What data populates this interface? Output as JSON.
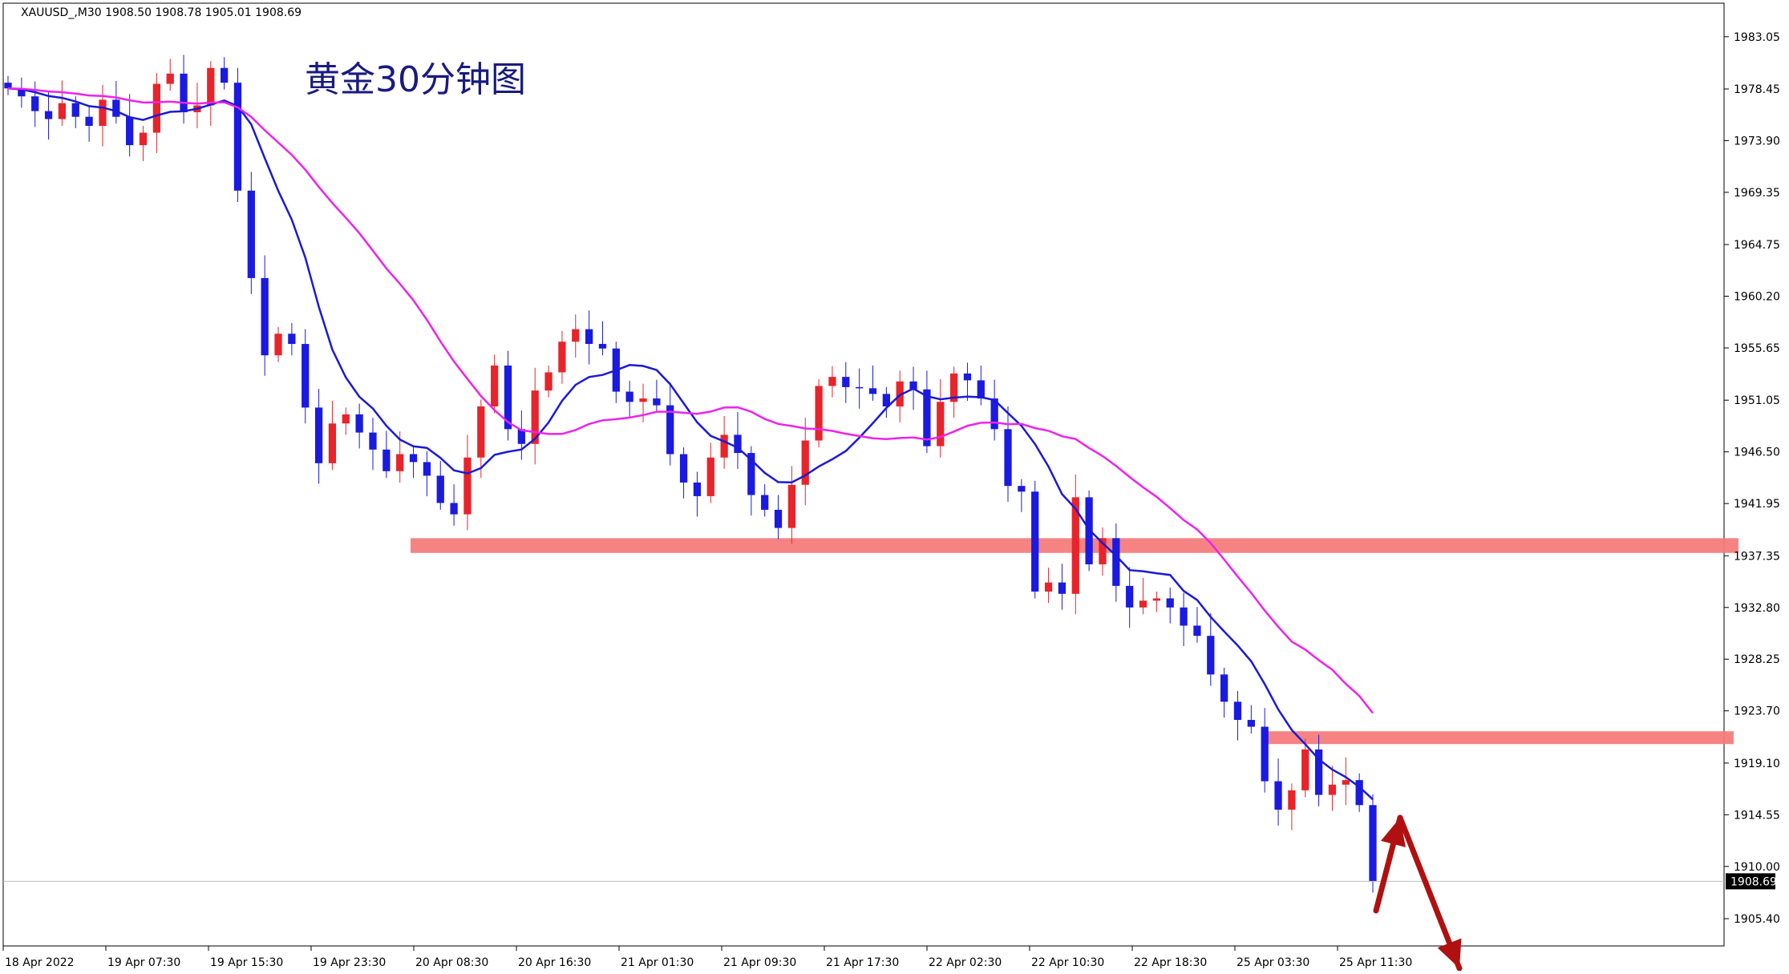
{
  "header": {
    "symbol_info": "XAUUSD_,M30  1908.50 1908.78 1905.01 1908.69"
  },
  "annotation": {
    "title": "黄金30分钟图"
  },
  "colors": {
    "bull": "#e8242b",
    "bear": "#1a1ae0",
    "ma_fast": "#1a1ad6",
    "ma_slow": "#ee22ee",
    "zone": "#f47c7c",
    "arrow": "#b01010",
    "price_tag_bg": "#000000"
  },
  "chart_data": {
    "type": "candlestick",
    "symbol": "XAUUSD_",
    "timeframe": "M30",
    "ylim": [
      1903.0,
      1986.0
    ],
    "y_ticks": [
      "1983.05",
      "1978.45",
      "1973.90",
      "1969.35",
      "1964.75",
      "1960.20",
      "1955.65",
      "1951.05",
      "1946.50",
      "1941.95",
      "1937.35",
      "1932.80",
      "1928.25",
      "1923.70",
      "1919.10",
      "1914.55",
      "1910.00",
      "1905.40"
    ],
    "x_ticks": [
      "18 Apr 2022",
      "19 Apr 07:30",
      "19 Apr 15:30",
      "19 Apr 23:30",
      "20 Apr 08:30",
      "20 Apr 16:30",
      "21 Apr 01:30",
      "21 Apr 09:30",
      "21 Apr 17:30",
      "22 Apr 02:30",
      "22 Apr 10:30",
      "22 Apr 18:30",
      "25 Apr 03:30",
      "25 Apr 11:30"
    ],
    "current_price": "1908.69",
    "ohlc_anchors_close": [
      1978.5,
      1977.8,
      1976.5,
      1975.8,
      1977.2,
      1976.0,
      1975.2,
      1977.5,
      1976.0,
      1973.5,
      1974.6,
      1978.9,
      1979.8,
      1976.4,
      1977.0,
      1980.3,
      1979.0,
      1969.5,
      1961.8,
      1955.0,
      1956.9,
      1956.0,
      1950.4,
      1945.5,
      1949.0,
      1949.8,
      1948.2,
      1946.7,
      1944.8,
      1946.3,
      1945.6,
      1944.4,
      1942.0,
      1941.0,
      1946.0,
      1950.5,
      1954.1,
      1948.5,
      1947.2,
      1951.9,
      1953.5,
      1956.2,
      1957.3,
      1956.0,
      1955.6,
      1951.8,
      1950.9,
      1951.2,
      1950.6,
      1946.3,
      1943.8,
      1942.6,
      1946.0,
      1948.0,
      1946.4,
      1942.7,
      1941.4,
      1939.8,
      1943.6,
      1947.5,
      1952.3,
      1953.1,
      1952.2,
      1952.1,
      1951.6,
      1950.5,
      1952.7,
      1952.0,
      1947.0,
      1950.9,
      1953.4,
      1952.8,
      1951.2,
      1948.5,
      1943.5,
      1943.0,
      1934.2,
      1935.0,
      1934.0,
      1942.5,
      1936.6,
      1938.9,
      1934.7,
      1932.8,
      1933.4,
      1933.6,
      1932.8,
      1931.2,
      1930.3,
      1926.9,
      1924.5,
      1922.9,
      1922.3,
      1917.5,
      1915.0,
      1916.7,
      1920.3,
      1916.3,
      1917.2,
      1917.6,
      1915.4,
      1908.7
    ],
    "bounds_ticks_note": null,
    "series": [
      {
        "name": "MA fast",
        "role": "blue moving average"
      },
      {
        "name": "MA slow",
        "role": "magenta moving average"
      }
    ],
    "zones": [
      {
        "price_low": 1937.6,
        "price_high": 1938.9,
        "from_tick": "20 Apr 08:30"
      },
      {
        "price_low": 1920.8,
        "price_high": 1921.9,
        "from_tick": "25 Apr 03:30"
      }
    ],
    "price_line": 1908.69
  }
}
